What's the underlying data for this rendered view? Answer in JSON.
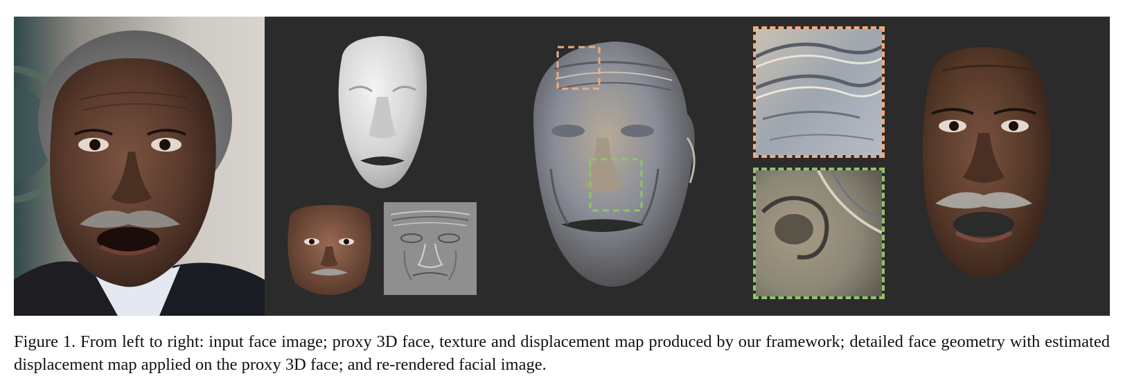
{
  "figure": {
    "caption": "Figure 1. From left to right: input face image; proxy 3D face, texture and displacement map produced by our framework; detailed face geometry with estimated displacement map applied on the proxy 3D face; and re-rendered facial image."
  },
  "colors": {
    "panel_background": "#2b2b2b",
    "zoom_box_orange": "#f2aa7d",
    "zoom_box_green": "#8fc46c"
  },
  "panels": [
    {
      "name": "input-face-image"
    },
    {
      "name": "proxy-3d-face"
    },
    {
      "name": "texture-map"
    },
    {
      "name": "displacement-map"
    },
    {
      "name": "detailed-face-geometry"
    },
    {
      "name": "forehead-zoom-crop"
    },
    {
      "name": "nose-zoom-crop"
    },
    {
      "name": "re-rendered-facial-image"
    }
  ]
}
